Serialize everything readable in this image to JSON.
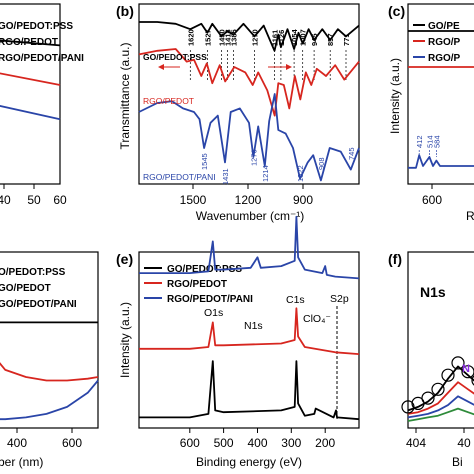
{
  "panels": {
    "a": {
      "x_ticks": [
        "40",
        "50",
        "60"
      ],
      "legend": [
        "GO/PEDOT:PSS",
        "RGO/PEDOT",
        "RGO/PEDOT/PANI"
      ]
    },
    "b": {
      "letter": "(b)",
      "ylabel": "Transmittance (a.u.)",
      "xlabel": "Wavenumber (cm⁻¹)",
      "x_ticks": [
        "1500",
        "1200",
        "900"
      ],
      "peaks_top": [
        "1620",
        "1527",
        "1450",
        "1418",
        "1385",
        "1270",
        "1161",
        "1126",
        "1054",
        "1007",
        "945",
        "857",
        "771"
      ],
      "peaks_bottom": [
        "1545",
        "1431",
        "1276",
        "1214",
        "1022",
        "908",
        "745"
      ],
      "labels": [
        "GO/PEDOT:PSS",
        "RGO/PEDOT",
        "RGO/PEDOT/PANI"
      ]
    },
    "c": {
      "letter": "(c)",
      "ylabel": "Intensity (a.u.)",
      "x_ticks": [
        "600"
      ],
      "peaks": [
        "412",
        "514",
        "584"
      ],
      "legend": [
        "GO/PE",
        "RGO/P",
        "RGO/P"
      ],
      "xlabel_fragment": "R"
    },
    "d": {
      "x_ticks": [
        "400",
        "600"
      ],
      "xlabel_fragment": "ber (nm)",
      "legend": [
        "O/PEDOT:PSS",
        "GO/PEDOT",
        "GO/PEDOT/PANI"
      ]
    },
    "e": {
      "letter": "(e)",
      "ylabel": "Intensity (a.u.)",
      "xlabel": "Binding energy (eV)",
      "x_ticks": [
        "600",
        "500",
        "400",
        "300",
        "200"
      ],
      "legend": [
        "GO/PEDOT:PSS",
        "RGO/PEDOT",
        "RGO/PEDOT/PANI"
      ],
      "peak_labels": [
        "O1s",
        "N1s",
        "C1s",
        "ClO₄⁻",
        "S2p"
      ]
    },
    "f": {
      "letter": "(f)",
      "title": "N1s",
      "x_ticks": [
        "404",
        "40"
      ],
      "xlabel_fragment": "Bi",
      "fragment_label": "N"
    }
  },
  "colors": {
    "black": "#000000",
    "red": "#d7261f",
    "blue": "#2a45a8"
  },
  "chart_data": [
    {
      "type": "line",
      "panel": "a",
      "xlim": [
        35,
        60
      ],
      "series": [
        {
          "name": "GO/PEDOT:PSS",
          "color": "#000000",
          "x": [
            35,
            60
          ],
          "y": [
            0.8,
            0.77
          ]
        },
        {
          "name": "RGO/PEDOT",
          "color": "#d7261f",
          "x": [
            35,
            60
          ],
          "y": [
            0.62,
            0.55
          ]
        },
        {
          "name": "RGO/PEDOT/PANI",
          "color": "#2a45a8",
          "x": [
            35,
            60
          ],
          "y": [
            0.44,
            0.36
          ]
        }
      ]
    },
    {
      "type": "line",
      "panel": "b",
      "xlim": [
        1900,
        700
      ],
      "series": [
        {
          "name": "GO/PEDOT:PSS",
          "color": "#000000",
          "x": [
            1900,
            1800,
            1700,
            1620,
            1560,
            1527,
            1500,
            1450,
            1418,
            1385,
            1330,
            1270,
            1220,
            1161,
            1140,
            1126,
            1090,
            1054,
            1030,
            1007,
            975,
            945,
            900,
            857,
            815,
            771,
            700
          ],
          "y": [
            0.9,
            0.9,
            0.89,
            0.86,
            0.89,
            0.84,
            0.89,
            0.82,
            0.85,
            0.83,
            0.89,
            0.82,
            0.88,
            0.74,
            0.83,
            0.76,
            0.86,
            0.75,
            0.84,
            0.78,
            0.86,
            0.8,
            0.86,
            0.8,
            0.86,
            0.82,
            0.88
          ]
        },
        {
          "name": "RGO/PEDOT",
          "color": "#d7261f",
          "x": [
            1900,
            1800,
            1700,
            1640,
            1600,
            1560,
            1530,
            1500,
            1460,
            1430,
            1380,
            1320,
            1280,
            1250,
            1200,
            1180,
            1160,
            1140,
            1110,
            1080,
            1050,
            1020,
            990,
            960,
            930,
            880,
            830,
            780,
            700
          ],
          "y": [
            0.72,
            0.74,
            0.75,
            0.68,
            0.69,
            0.6,
            0.67,
            0.56,
            0.66,
            0.57,
            0.65,
            0.62,
            0.55,
            0.62,
            0.52,
            0.45,
            0.38,
            0.56,
            0.55,
            0.42,
            0.6,
            0.47,
            0.62,
            0.55,
            0.64,
            0.6,
            0.66,
            0.58,
            0.68
          ]
        },
        {
          "name": "RGO/PEDOT/PANI",
          "color": "#2a45a8",
          "x": [
            1900,
            1800,
            1720,
            1660,
            1600,
            1570,
            1545,
            1510,
            1470,
            1431,
            1400,
            1350,
            1300,
            1276,
            1250,
            1214,
            1190,
            1160,
            1140,
            1100,
            1060,
            1022,
            980,
            950,
            908,
            860,
            800,
            745,
            700
          ],
          "y": [
            0.4,
            0.45,
            0.46,
            0.42,
            0.4,
            0.36,
            0.2,
            0.34,
            0.38,
            0.12,
            0.4,
            0.42,
            0.34,
            0.15,
            0.32,
            0.1,
            0.35,
            0.5,
            0.3,
            0.28,
            0.2,
            0.03,
            0.12,
            0.16,
            0.02,
            0.2,
            0.18,
            0.08,
            0.2
          ]
        }
      ]
    },
    {
      "type": "line",
      "panel": "c",
      "xlim": [
        300,
        1000
      ],
      "series": [
        {
          "name": "GO/PE",
          "color": "#000000",
          "x": [
            300,
            1000
          ],
          "y": [
            0.85,
            0.85
          ]
        },
        {
          "name": "RGO/P",
          "color": "#d7261f",
          "x": [
            300,
            1000
          ],
          "y": [
            0.65,
            0.65
          ]
        },
        {
          "name": "RGO/P",
          "color": "#2a45a8",
          "x": [
            300,
            380,
            412,
            450,
            514,
            550,
            584,
            620,
            700,
            800,
            1000
          ],
          "y": [
            0.09,
            0.09,
            0.16,
            0.1,
            0.15,
            0.1,
            0.13,
            0.1,
            0.1,
            0.1,
            0.1
          ]
        }
      ]
    },
    {
      "type": "line",
      "panel": "d",
      "xlim": [
        250,
        750
      ],
      "series": [
        {
          "name": "O/PEDOT:PSS",
          "color": "#000000",
          "x": [
            250,
            750
          ],
          "y": [
            0.6,
            0.6
          ]
        },
        {
          "name": "GO/PEDOT",
          "color": "#d7261f",
          "x": [
            250,
            300,
            400,
            500,
            600,
            700,
            750
          ],
          "y": [
            0.4,
            0.33,
            0.29,
            0.27,
            0.27,
            0.28,
            0.29
          ]
        },
        {
          "name": "GO/PEDOT/PANI",
          "color": "#2a45a8",
          "x": [
            250,
            300,
            400,
            500,
            600,
            700,
            750
          ],
          "y": [
            0.05,
            0.05,
            0.06,
            0.08,
            0.12,
            0.2,
            0.27
          ]
        }
      ]
    },
    {
      "type": "line",
      "panel": "e",
      "xlim": [
        750,
        100
      ],
      "series": [
        {
          "name": "RGO/PEDOT/PANI",
          "color": "#2a45a8",
          "x": [
            750,
            600,
            545,
            532,
            525,
            500,
            420,
            400,
            390,
            330,
            290,
            285,
            280,
            260,
            208,
            200,
            195,
            170,
            100
          ],
          "y": [
            0.88,
            0.88,
            0.89,
            1.06,
            0.9,
            0.9,
            0.91,
            0.97,
            0.91,
            0.92,
            0.95,
            1.2,
            0.97,
            0.9,
            0.88,
            0.92,
            0.87,
            0.86,
            0.85
          ]
        },
        {
          "name": "RGO/PEDOT",
          "color": "#d7261f",
          "x": [
            750,
            600,
            545,
            532,
            525,
            500,
            330,
            290,
            285,
            280,
            260,
            170,
            100
          ],
          "y": [
            0.45,
            0.45,
            0.46,
            0.6,
            0.47,
            0.47,
            0.48,
            0.5,
            0.68,
            0.52,
            0.46,
            0.43,
            0.42
          ]
        },
        {
          "name": "GO/PEDOT:PSS",
          "color": "#000000",
          "x": [
            750,
            600,
            545,
            532,
            525,
            500,
            330,
            290,
            285,
            280,
            260,
            232,
            228,
            175,
            168,
            165,
            100
          ],
          "y": [
            0.06,
            0.06,
            0.08,
            0.38,
            0.1,
            0.09,
            0.1,
            0.12,
            0.38,
            0.14,
            0.07,
            0.08,
            0.11,
            0.06,
            0.1,
            0.06,
            0.05
          ]
        }
      ]
    },
    {
      "type": "line",
      "panel": "f",
      "xlim": [
        405,
        398
      ],
      "series": [
        {
          "name": "",
          "color": "#000000",
          "x": [
            405,
            404,
            403,
            402,
            401,
            400,
            399,
            398
          ],
          "y": [
            0.1,
            0.12,
            0.15,
            0.2,
            0.28,
            0.35,
            0.3,
            0.25
          ]
        },
        {
          "name": "",
          "color": "#d7261f",
          "x": [
            405,
            404,
            403,
            402,
            401,
            400,
            399,
            398
          ],
          "y": [
            0.08,
            0.09,
            0.11,
            0.14,
            0.2,
            0.26,
            0.22,
            0.18
          ]
        },
        {
          "name": "",
          "color": "#2a45a8",
          "x": [
            405,
            404,
            403,
            402,
            401,
            400,
            399,
            398
          ],
          "y": [
            0.06,
            0.07,
            0.08,
            0.1,
            0.13,
            0.18,
            0.15,
            0.12
          ]
        },
        {
          "name": "",
          "color": "#2e8b3a",
          "x": [
            405,
            404,
            403,
            402,
            401,
            400,
            399,
            398
          ],
          "y": [
            0.04,
            0.05,
            0.06,
            0.07,
            0.09,
            0.11,
            0.09,
            0.07
          ]
        }
      ]
    }
  ]
}
